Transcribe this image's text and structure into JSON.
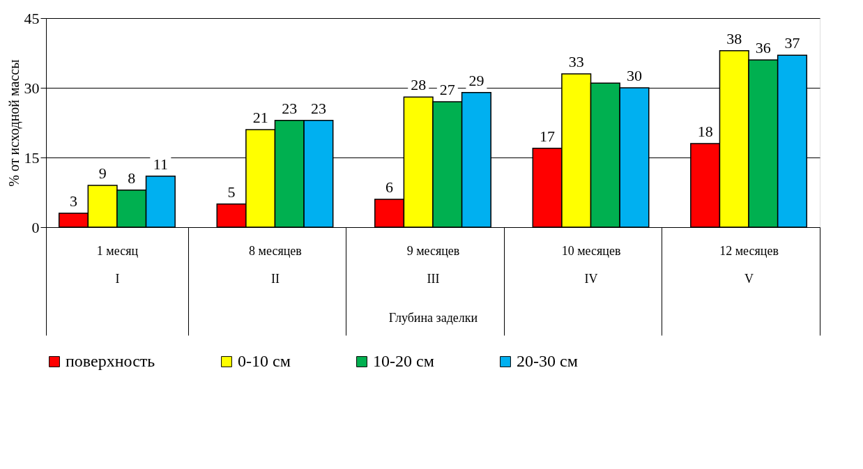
{
  "chart_data": {
    "type": "bar",
    "xlabel": "Глубина заделки",
    "ylabel": "% от исходной массы",
    "categories": [
      "1 месяц\nI",
      "8 месяцев\nII",
      "9 месяцев\nIII",
      "10 месяцев\nIV",
      "12 месяцев\nV"
    ],
    "series": [
      {
        "name": "поверхность",
        "color": "#ff0000",
        "values": [
          3,
          5,
          6,
          17,
          18
        ],
        "value_labels": [
          "3",
          "5",
          "6",
          "17",
          "18"
        ]
      },
      {
        "name": "0-10 см",
        "color": "#ffff00",
        "values": [
          9,
          21,
          28,
          33,
          38
        ],
        "value_labels": [
          "9",
          "21",
          "28",
          "33",
          "38"
        ]
      },
      {
        "name": "10-20 см",
        "color": "#00b050",
        "values": [
          8,
          23,
          27,
          31,
          36
        ],
        "value_labels": [
          "8",
          "23",
          "27",
          null,
          "36"
        ]
      },
      {
        "name": "20-30 см",
        "color": "#00b0f0",
        "values": [
          11,
          23,
          29,
          30,
          37
        ],
        "value_labels": [
          "11",
          "23",
          "29",
          "30",
          "37"
        ]
      }
    ],
    "ylim": [
      0,
      45
    ],
    "yticks": [
      0,
      15,
      30,
      45
    ],
    "grid": "y",
    "legend": "bottom"
  }
}
